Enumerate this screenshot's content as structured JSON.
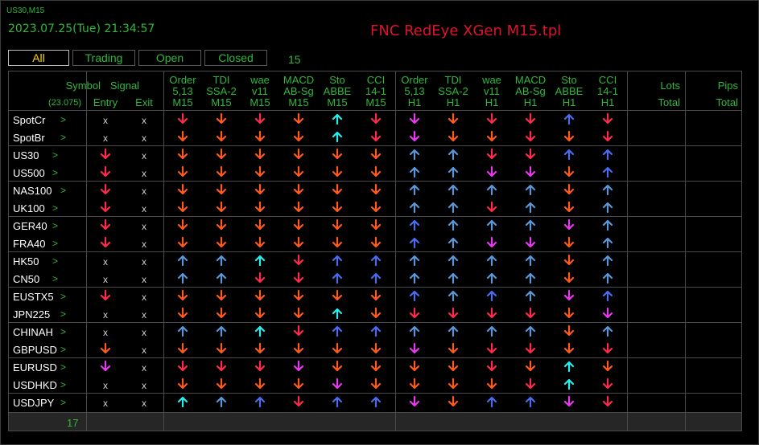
{
  "window": {
    "corner_label": "US30,M15",
    "datetime": "2023.07.25(Tue) 21:34:57",
    "title": "FNC RedEye XGen M15.tpl"
  },
  "tabs": [
    {
      "label": "All",
      "active": true
    },
    {
      "label": "Trading",
      "active": false
    },
    {
      "label": "Open",
      "active": false
    },
    {
      "label": "Closed",
      "active": false
    }
  ],
  "tab_count": "15",
  "header": {
    "symbol": "Symbol",
    "balance": "(23.075)",
    "signal": "Signal",
    "entry": "Entry",
    "exit": "Exit",
    "indicators": [
      [
        "Order",
        "5,13",
        "M15"
      ],
      [
        "TDI",
        "SSA-2",
        "M15"
      ],
      [
        "wae",
        "v11",
        "M15"
      ],
      [
        "MACD",
        "AB-Sg",
        "M15"
      ],
      [
        "Sto",
        "ABBE",
        "M15"
      ],
      [
        "CCI",
        "14-1",
        "M15"
      ],
      [
        "Order",
        "5,13",
        "H1"
      ],
      [
        "TDI",
        "SSA-2",
        "H1"
      ],
      [
        "wae",
        "v11",
        "H1"
      ],
      [
        "MACD",
        "AB-Sg",
        "H1"
      ],
      [
        "Sto",
        "ABBE",
        "H1"
      ],
      [
        "CCI",
        "14-1",
        "H1"
      ]
    ],
    "lots": "Lots",
    "lots_total": "Total",
    "pips": "Pips",
    "pips_total": "Total"
  },
  "colors": {
    "D": "#ff5a18",
    "d": "#ff2a4a",
    "m": "#e838f0",
    "u": "#5a96d8",
    "b": "#4a6cf0",
    "c": "#22f0f0"
  },
  "rows": [
    {
      "symbol": "SpotCr",
      "arrow": ">",
      "entry": "x",
      "exit": "x",
      "ind": [
        "dd",
        "dD",
        "dd",
        "dD",
        "uc",
        "dd",
        "dm",
        "dD",
        "dd",
        "dd",
        "ub",
        "dd"
      ]
    },
    {
      "symbol": "SpotBr",
      "arrow": ">",
      "entry": "x",
      "exit": "x",
      "ind": [
        "dD",
        "dD",
        "dD",
        "dD",
        "uc",
        "dd",
        "dm",
        "dD",
        "dD",
        "dd",
        "dD",
        "dd"
      ]
    },
    {
      "symbol": "US30",
      "arrow": ">",
      "entry": "dd",
      "exit": "x",
      "ind": [
        "dD",
        "dD",
        "dD",
        "dD",
        "dD",
        "dD",
        "uu",
        "uu",
        "dd",
        "dd",
        "ub",
        "ub"
      ]
    },
    {
      "symbol": "US500",
      "arrow": ">",
      "entry": "dd",
      "exit": "x",
      "ind": [
        "dD",
        "dD",
        "dD",
        "dD",
        "dD",
        "dD",
        "uu",
        "uu",
        "dm",
        "dm",
        "dD",
        "ub"
      ]
    },
    {
      "symbol": "NAS100",
      "arrow": ">",
      "entry": "dd",
      "exit": "x",
      "ind": [
        "dD",
        "dD",
        "dD",
        "dD",
        "dD",
        "dD",
        "uu",
        "uu",
        "uu",
        "uu",
        "dD",
        "uu"
      ]
    },
    {
      "symbol": "UK100",
      "arrow": ">",
      "entry": "dd",
      "exit": "x",
      "ind": [
        "dD",
        "dD",
        "dD",
        "dD",
        "dD",
        "dD",
        "uu",
        "uu",
        "dd",
        "uu",
        "dD",
        "uu"
      ]
    },
    {
      "symbol": "GER40",
      "arrow": ">",
      "entry": "dd",
      "exit": "x",
      "ind": [
        "dD",
        "dD",
        "dD",
        "dD",
        "dD",
        "dD",
        "ub",
        "uu",
        "uu",
        "uu",
        "dm",
        "uu"
      ]
    },
    {
      "symbol": "FRA40",
      "arrow": ">",
      "entry": "dd",
      "exit": "x",
      "ind": [
        "dD",
        "dD",
        "dD",
        "dD",
        "dD",
        "dD",
        "ub",
        "uu",
        "dm",
        "dm",
        "dD",
        "uu"
      ]
    },
    {
      "symbol": "HK50",
      "arrow": ">",
      "entry": "x",
      "exit": "x",
      "ind": [
        "uu",
        "uu",
        "uc",
        "dd",
        "ub",
        "ub",
        "uu",
        "uu",
        "uu",
        "uu",
        "dD",
        "uu"
      ]
    },
    {
      "symbol": "CN50",
      "arrow": ">",
      "entry": "x",
      "exit": "x",
      "ind": [
        "uu",
        "uu",
        "dd",
        "dd",
        "ub",
        "ub",
        "uu",
        "uu",
        "uu",
        "uu",
        "dD",
        "uu"
      ]
    },
    {
      "symbol": "EUSTX5",
      "arrow": ">",
      "entry": "dd",
      "exit": "x",
      "ind": [
        "dD",
        "dD",
        "dD",
        "dD",
        "dD",
        "dD",
        "ub",
        "uu",
        "ub",
        "uu",
        "dm",
        "ub"
      ]
    },
    {
      "symbol": "JPN225",
      "arrow": ">",
      "entry": "x",
      "exit": "x",
      "ind": [
        "dD",
        "dD",
        "dD",
        "dD",
        "uc",
        "dD",
        "dd",
        "dd",
        "dd",
        "dd",
        "dD",
        "dm"
      ]
    },
    {
      "symbol": "CHINAH",
      "arrow": ">",
      "entry": "x",
      "exit": "x",
      "ind": [
        "uu",
        "uu",
        "uc",
        "dd",
        "ub",
        "ub",
        "uu",
        "uu",
        "uu",
        "uu",
        "dD",
        "uu"
      ]
    },
    {
      "symbol": "GBPUSD",
      "arrow": ">",
      "entry": "dD",
      "exit": "x",
      "ind": [
        "dD",
        "dD",
        "dD",
        "dD",
        "dD",
        "dD",
        "dm",
        "dD",
        "dd",
        "dd",
        "dD",
        "dd"
      ]
    },
    {
      "symbol": "EURUSD",
      "arrow": ">",
      "entry": "dm",
      "exit": "x",
      "ind": [
        "dd",
        "dd",
        "dd",
        "dm",
        "dD",
        "dD",
        "dD",
        "dD",
        "dd",
        "dD",
        "uc",
        "dD"
      ]
    },
    {
      "symbol": "USDHKD",
      "arrow": ">",
      "entry": "x",
      "exit": "x",
      "ind": [
        "dD",
        "dD",
        "dD",
        "dD",
        "dm",
        "dD",
        "dD",
        "dD",
        "dD",
        "dd",
        "uc",
        "dd"
      ]
    },
    {
      "symbol": "USDJPY",
      "arrow": ">",
      "entry": "x",
      "exit": "x",
      "ind": [
        "uc",
        "uu",
        "ub",
        "dd",
        "ub",
        "ub",
        "dm",
        "dD",
        "ub",
        "ub",
        "dm",
        "dd"
      ]
    }
  ],
  "footer_count": "17"
}
